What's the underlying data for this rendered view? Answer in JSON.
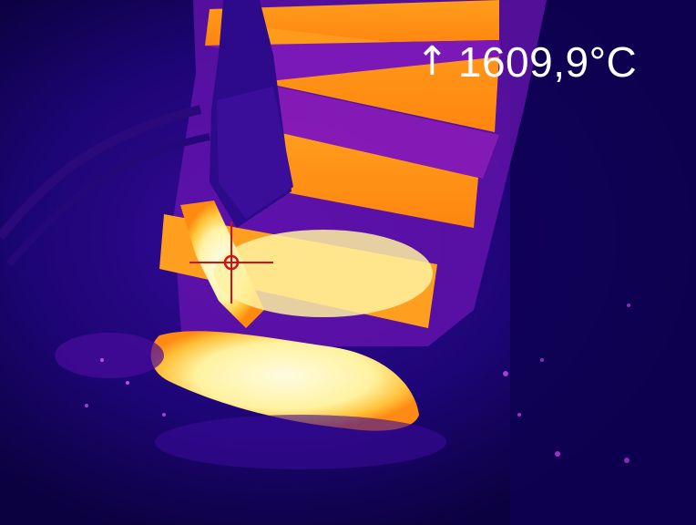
{
  "readout": {
    "arrow_glyph": "↑",
    "temperature": "1609,9°C"
  },
  "palette": {
    "background": "#0a0033",
    "cold": "#1a0470",
    "cool": "#3a0aa0",
    "warm": "#a81fb0",
    "hot": "#ff8a10",
    "hotter": "#ffc83a",
    "hottest": "#fffbd6",
    "crosshair": "#d0101a",
    "text": "#ffffff"
  },
  "icons": {
    "crosshair": "crosshair-icon",
    "arrow": "arrow-up-icon"
  }
}
